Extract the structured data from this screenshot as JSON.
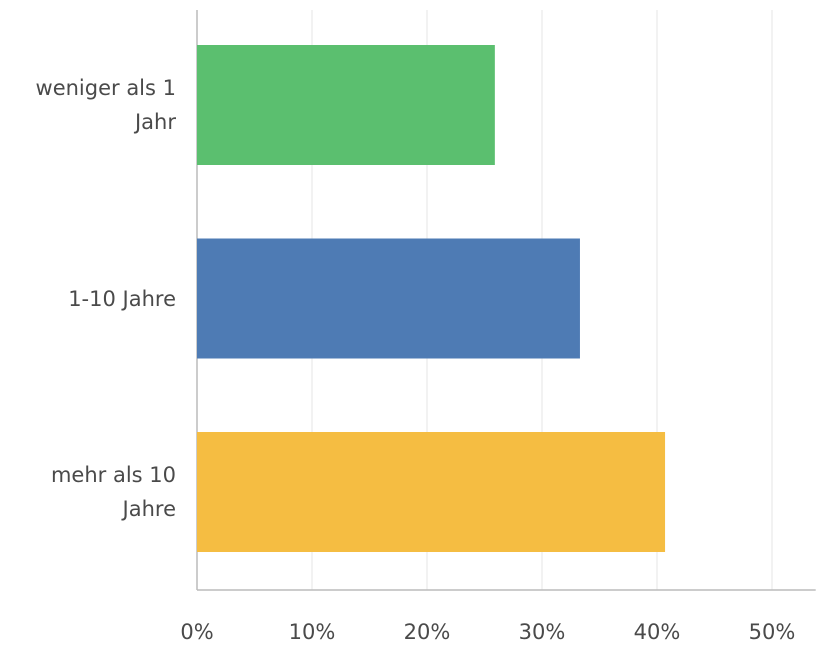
{
  "chart_data": {
    "type": "bar",
    "orientation": "horizontal",
    "categories": [
      "weniger als 1 Jahr",
      "1-10 Jahre",
      "mehr als 10 Jahre"
    ],
    "values": [
      25.9,
      33.3,
      40.7
    ],
    "colors": [
      "#5bbf6f",
      "#4e7bb4",
      "#f5bd42"
    ],
    "xlim": [
      0,
      53.8
    ],
    "xticks": [
      {
        "value": 0,
        "label": "0%"
      },
      {
        "value": 10,
        "label": "10%"
      },
      {
        "value": 20,
        "label": "20%"
      },
      {
        "value": 30,
        "label": "30%"
      },
      {
        "value": 40,
        "label": "40%"
      },
      {
        "value": 50,
        "label": "50%"
      }
    ],
    "grid": true
  }
}
